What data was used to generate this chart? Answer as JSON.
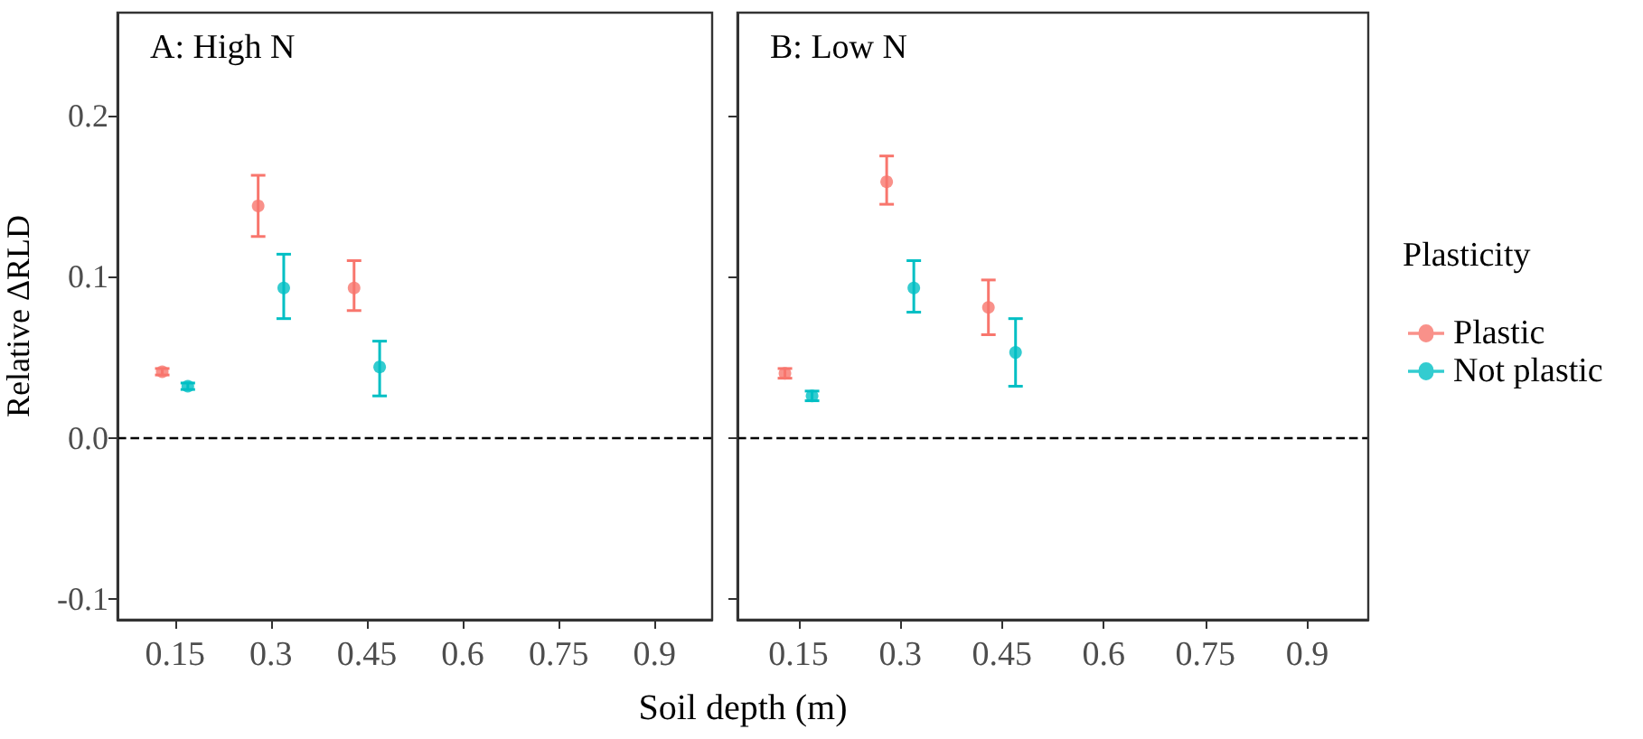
{
  "chart_data": [
    {
      "type": "scatter",
      "title": "A: High N",
      "xlabel": "Soil depth (m)",
      "ylabel": "Relative ΔRLD",
      "xlim": [
        0.06,
        0.99
      ],
      "xticks": [
        0.15,
        0.3,
        0.45,
        0.6,
        0.75,
        0.9
      ],
      "ylim": [
        -0.113,
        0.264
      ],
      "yticks": [
        -0.1,
        {
          "value": 0,
          "label": "0.0"
        },
        0.1,
        0.2
      ],
      "grid": false,
      "legend": false,
      "marker": "circle",
      "series": [
        {
          "color": "#f8766d",
          "x": [
            0.13,
            0.28,
            0.43
          ],
          "values": [
            0.041,
            0.144,
            0.093
          ],
          "errors": [
            [
              0.039,
              0.043
            ],
            [
              0.125,
              0.163
            ],
            [
              0.079,
              0.11
            ]
          ]
        },
        {
          "color": "#00bfc4",
          "x": [
            0.17,
            0.32,
            0.47
          ],
          "values": [
            0.032,
            0.093,
            0.044
          ],
          "errors": [
            [
              0.03,
              0.034
            ],
            [
              0.074,
              0.114
            ],
            [
              0.026,
              0.06
            ]
          ]
        }
      ],
      "ref_lines": [
        {
          "axis": "y",
          "value": 0,
          "line_style": "dashed"
        }
      ]
    },
    {
      "type": "scatter",
      "title": "B: Low N",
      "legend_title": "Plasticity",
      "xlim": [
        0.06,
        0.99
      ],
      "xticks": [
        0.15,
        0.3,
        0.45,
        0.6,
        0.75,
        0.9
      ],
      "ylim": [
        -0.113,
        0.264
      ],
      "yticks": [
        -0.1,
        0,
        0.1,
        0.2
      ],
      "tick_labels": "x",
      "grid": false,
      "legend": "right",
      "marker": "circle",
      "series": [
        {
          "name": "Plastic",
          "color": "#f8766d",
          "x": [
            0.13,
            0.28,
            0.43
          ],
          "values": [
            0.04,
            0.159,
            0.081
          ],
          "errors": [
            [
              0.037,
              0.043
            ],
            [
              0.145,
              0.175
            ],
            [
              0.064,
              0.098
            ]
          ]
        },
        {
          "name": "Not plastic",
          "color": "#00bfc4",
          "x": [
            0.17,
            0.32,
            0.47
          ],
          "values": [
            0.026,
            0.093,
            0.053
          ],
          "errors": [
            [
              0.023,
              0.029
            ],
            [
              0.078,
              0.11
            ],
            [
              0.032,
              0.074
            ]
          ]
        }
      ],
      "ref_lines": [
        {
          "axis": "y",
          "value": 0,
          "line_style": "dashed"
        }
      ]
    }
  ]
}
